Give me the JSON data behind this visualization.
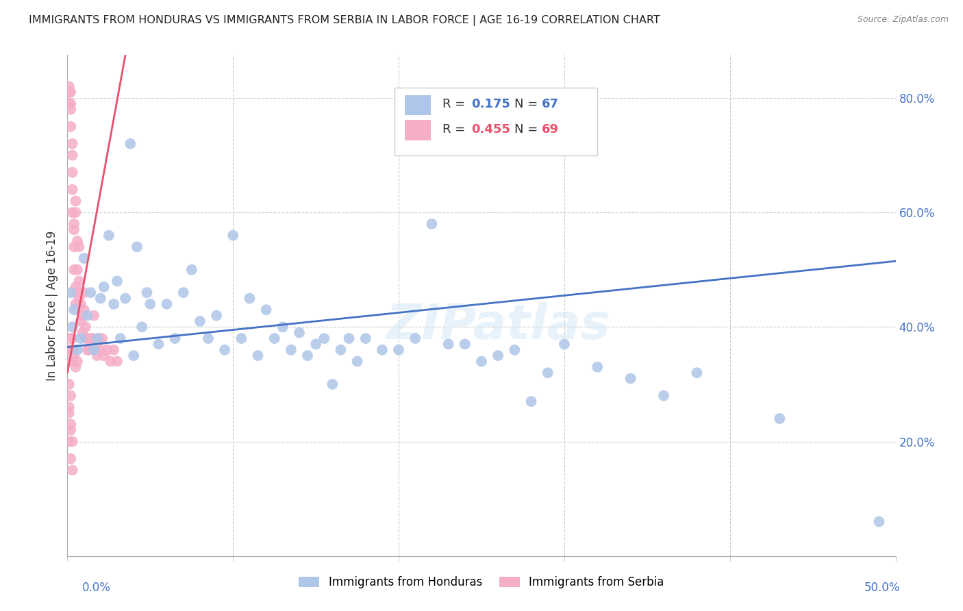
{
  "title": "IMMIGRANTS FROM HONDURAS VS IMMIGRANTS FROM SERBIA IN LABOR FORCE | AGE 16-19 CORRELATION CHART",
  "source": "Source: ZipAtlas.com",
  "ylabel": "In Labor Force | Age 16-19",
  "xlim": [
    0.0,
    0.5
  ],
  "ylim": [
    0.0,
    0.875
  ],
  "yticks": [
    0.0,
    0.2,
    0.4,
    0.6,
    0.8
  ],
  "yticklabels": [
    "",
    "20.0%",
    "40.0%",
    "60.0%",
    "80.0%"
  ],
  "legend_r_honduras": "0.175",
  "legend_n_honduras": "67",
  "legend_r_serbia": "0.455",
  "legend_n_serbia": "69",
  "legend_label_honduras": "Immigrants from Honduras",
  "legend_label_serbia": "Immigrants from Serbia",
  "color_honduras": "#aec6e8",
  "color_serbia": "#f5aec8",
  "trendline_color_honduras": "#4472c4",
  "trendline_color_serbia": "#e8506a",
  "watermark": "ZIPatlas",
  "honduras_x": [
    0.002,
    0.003,
    0.004,
    0.006,
    0.008,
    0.01,
    0.012,
    0.014,
    0.016,
    0.018,
    0.02,
    0.022,
    0.025,
    0.028,
    0.03,
    0.032,
    0.035,
    0.038,
    0.04,
    0.042,
    0.045,
    0.048,
    0.05,
    0.055,
    0.06,
    0.065,
    0.07,
    0.075,
    0.08,
    0.085,
    0.09,
    0.095,
    0.1,
    0.105,
    0.11,
    0.115,
    0.12,
    0.125,
    0.13,
    0.135,
    0.14,
    0.145,
    0.15,
    0.155,
    0.16,
    0.165,
    0.17,
    0.175,
    0.18,
    0.19,
    0.2,
    0.21,
    0.22,
    0.23,
    0.24,
    0.25,
    0.26,
    0.27,
    0.28,
    0.29,
    0.3,
    0.32,
    0.34,
    0.36,
    0.38,
    0.43,
    0.49
  ],
  "honduras_y": [
    0.46,
    0.4,
    0.43,
    0.36,
    0.38,
    0.52,
    0.42,
    0.46,
    0.36,
    0.38,
    0.45,
    0.47,
    0.56,
    0.44,
    0.48,
    0.38,
    0.45,
    0.72,
    0.35,
    0.54,
    0.4,
    0.46,
    0.44,
    0.37,
    0.44,
    0.38,
    0.46,
    0.5,
    0.41,
    0.38,
    0.42,
    0.36,
    0.56,
    0.38,
    0.45,
    0.35,
    0.43,
    0.38,
    0.4,
    0.36,
    0.39,
    0.35,
    0.37,
    0.38,
    0.3,
    0.36,
    0.38,
    0.34,
    0.38,
    0.36,
    0.36,
    0.38,
    0.58,
    0.37,
    0.37,
    0.34,
    0.35,
    0.36,
    0.27,
    0.32,
    0.37,
    0.33,
    0.31,
    0.28,
    0.32,
    0.24,
    0.06
  ],
  "serbia_x": [
    0.001,
    0.001,
    0.001,
    0.002,
    0.002,
    0.002,
    0.002,
    0.003,
    0.003,
    0.003,
    0.003,
    0.003,
    0.004,
    0.004,
    0.004,
    0.004,
    0.005,
    0.005,
    0.005,
    0.005,
    0.006,
    0.006,
    0.006,
    0.007,
    0.007,
    0.007,
    0.008,
    0.008,
    0.009,
    0.009,
    0.01,
    0.01,
    0.011,
    0.011,
    0.012,
    0.012,
    0.013,
    0.014,
    0.015,
    0.016,
    0.017,
    0.018,
    0.019,
    0.02,
    0.021,
    0.022,
    0.024,
    0.026,
    0.028,
    0.03,
    0.001,
    0.002,
    0.003,
    0.004,
    0.005,
    0.006,
    0.002,
    0.003,
    0.004,
    0.001,
    0.002,
    0.001,
    0.002,
    0.003,
    0.001,
    0.002,
    0.003,
    0.001,
    0.002
  ],
  "serbia_y": [
    0.81,
    0.79,
    0.82,
    0.81,
    0.79,
    0.78,
    0.75,
    0.72,
    0.7,
    0.67,
    0.64,
    0.6,
    0.57,
    0.54,
    0.58,
    0.5,
    0.62,
    0.47,
    0.6,
    0.44,
    0.55,
    0.5,
    0.46,
    0.54,
    0.45,
    0.48,
    0.41,
    0.44,
    0.42,
    0.39,
    0.43,
    0.46,
    0.38,
    0.4,
    0.36,
    0.38,
    0.36,
    0.38,
    0.38,
    0.42,
    0.36,
    0.35,
    0.38,
    0.36,
    0.38,
    0.35,
    0.36,
    0.34,
    0.36,
    0.34,
    0.36,
    0.36,
    0.34,
    0.35,
    0.33,
    0.34,
    0.38,
    0.38,
    0.36,
    0.3,
    0.28,
    0.26,
    0.22,
    0.2,
    0.2,
    0.17,
    0.15,
    0.25,
    0.23
  ],
  "trendline_h_x0": 0.0,
  "trendline_h_y0": 0.365,
  "trendline_h_x1": 0.5,
  "trendline_h_y1": 0.515,
  "trendline_s_x0": 0.0,
  "trendline_s_y0": 0.32,
  "trendline_s_x1": 0.035,
  "trendline_s_y1": 0.875
}
